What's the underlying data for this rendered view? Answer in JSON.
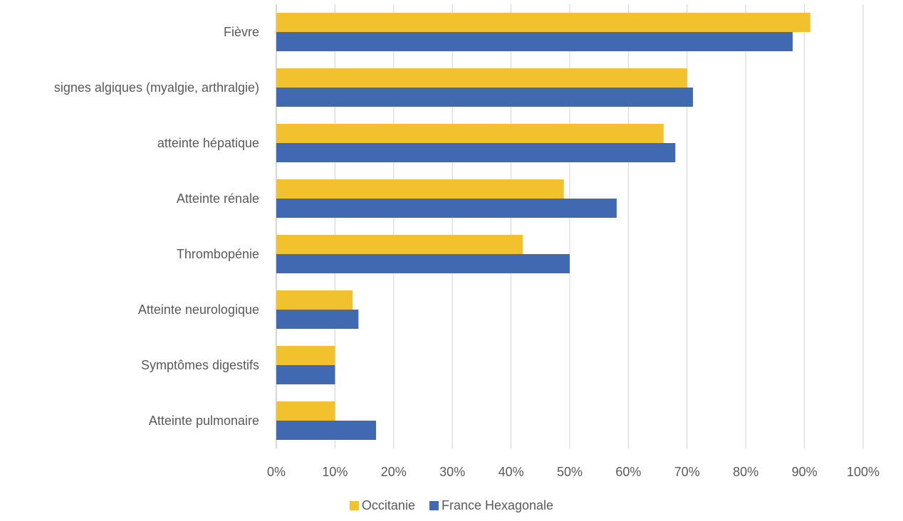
{
  "chart_data": {
    "type": "bar",
    "orientation": "horizontal",
    "categories": [
      "Fièvre",
      "signes algiques (myalgie, arthralgie)",
      "atteinte hépatique",
      "Atteinte rénale",
      "Thrombopénie",
      "Atteinte neurologique",
      "Symptômes digestifs",
      "Atteinte pulmonaire"
    ],
    "series": [
      {
        "name": "Occitanie",
        "color": "#F2C12E",
        "values": [
          0.91,
          0.7,
          0.66,
          0.49,
          0.42,
          0.13,
          0.1,
          0.1
        ]
      },
      {
        "name": "France Hexagonale",
        "color": "#4069B2",
        "values": [
          0.88,
          0.71,
          0.68,
          0.58,
          0.5,
          0.14,
          0.1,
          0.17
        ]
      }
    ],
    "xlim": [
      0,
      1
    ],
    "x_ticks": [
      "0%",
      "10%",
      "20%",
      "30%",
      "40%",
      "50%",
      "60%",
      "70%",
      "80%",
      "90%",
      "100%"
    ],
    "grid": true,
    "gridline_color": "#D9D9D9",
    "legend_position": "bottom-center",
    "title": "",
    "xlabel": "",
    "ylabel": ""
  }
}
